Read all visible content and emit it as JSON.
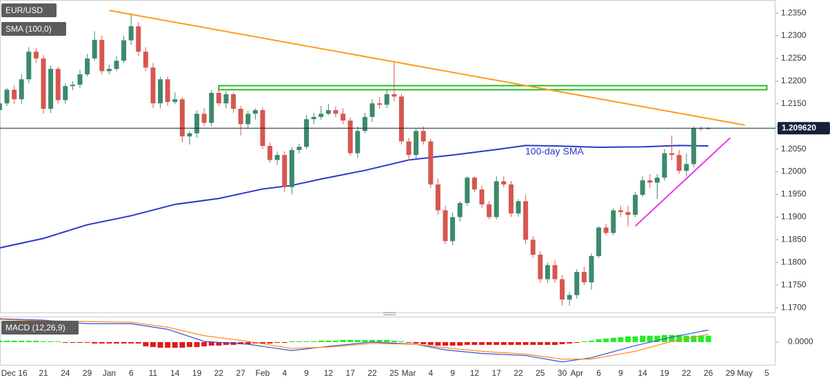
{
  "chart_data": [
    {
      "type": "candlestick",
      "title": "EUR/USD",
      "categories": [
        null,
        null,
        "Dec 16",
        null,
        null,
        null,
        "21",
        null,
        null,
        "24",
        null,
        null,
        "29",
        null,
        null,
        "Jan",
        null,
        null,
        "6",
        null,
        null,
        "11",
        null,
        null,
        "14",
        null,
        null,
        "19",
        null,
        null,
        "22",
        null,
        null,
        "27",
        null,
        null,
        "Feb",
        null,
        null,
        "4",
        null,
        null,
        "9",
        null,
        null,
        "12",
        null,
        null,
        "17",
        null,
        null,
        "22",
        null,
        null,
        "25",
        null,
        "Mar",
        null,
        null,
        "4",
        null,
        null,
        "9",
        null,
        null,
        "12",
        null,
        null,
        "17",
        null,
        null,
        "22",
        null,
        null,
        "25",
        null,
        null,
        "30",
        null,
        "Apr",
        null,
        null,
        "6",
        null,
        null,
        "9",
        null,
        null,
        "14",
        null,
        null,
        "19",
        null,
        null,
        "22",
        null,
        null,
        "26",
        null,
        null,
        "29",
        null,
        "May",
        null,
        null,
        "5"
      ],
      "open": [
        1.2136,
        1.2151,
        1.2181,
        1.216,
        1.2204,
        1.2265,
        1.225,
        1.2139,
        1.2227,
        1.2158,
        1.2189,
        1.2192,
        1.2215,
        1.225,
        1.2291,
        1.2222,
        1.2227,
        1.2245,
        1.229,
        1.2321,
        1.2265,
        1.223,
        1.2151,
        1.2204,
        1.2154,
        1.216,
        1.2078,
        1.2085,
        1.2128,
        1.2108,
        1.2174,
        1.2151,
        1.2171,
        1.2139,
        1.2105,
        1.2128,
        1.2136,
        1.2057,
        1.2026,
        1.2037,
        1.1966,
        1.2048,
        1.2055,
        1.2116,
        1.2121,
        1.2128,
        1.2136,
        1.2128,
        1.2113,
        1.2041,
        1.209,
        1.2121,
        1.2151,
        1.2148,
        1.2171,
        1.2166,
        1.2067,
        1.2037,
        1.209,
        1.2067,
        1.1972,
        1.1915,
        1.1847,
        1.19,
        1.1931,
        1.1987,
        1.1961,
        1.1928,
        1.19,
        1.1979,
        1.1972,
        1.1908,
        1.1935,
        1.185,
        1.1817,
        1.1763,
        1.1794,
        1.1763,
        1.1718,
        1.1728,
        1.1779,
        1.1756,
        1.1814,
        1.1877,
        1.1865,
        1.1915,
        1.1911,
        1.1905,
        1.1949,
        1.1981,
        1.1976,
        1.1987,
        1.2041,
        1.2037,
        1.2002,
        1.2017,
        1.2096,
        1.2095,
        null,
        null,
        null,
        null,
        null,
        null,
        null,
        null
      ],
      "high": [
        1.216,
        1.2185,
        1.219,
        1.2215,
        1.2275,
        1.2273,
        1.2258,
        1.2235,
        1.2232,
        1.2195,
        1.22,
        1.2225,
        1.226,
        1.231,
        1.23,
        1.2236,
        1.2255,
        1.23,
        1.235,
        1.233,
        1.2275,
        1.224,
        1.221,
        1.221,
        1.2175,
        1.2165,
        1.209,
        1.2135,
        1.214,
        1.218,
        1.2185,
        1.2178,
        1.2175,
        1.2145,
        1.2135,
        1.214,
        1.2142,
        1.2065,
        1.2045,
        1.2045,
        1.2055,
        1.2062,
        1.2125,
        1.213,
        1.2145,
        1.215,
        1.2145,
        1.214,
        1.212,
        1.21,
        1.213,
        1.216,
        1.2165,
        1.218,
        1.2243,
        1.2172,
        1.2075,
        1.2095,
        1.21,
        1.2073,
        1.1985,
        1.1925,
        1.191,
        1.1935,
        1.199,
        1.199,
        1.197,
        1.1935,
        1.199,
        1.199,
        1.198,
        1.194,
        1.195,
        1.1858,
        1.1825,
        1.18,
        1.1805,
        1.1772,
        1.1735,
        1.1785,
        1.179,
        1.182,
        1.188,
        1.1885,
        1.192,
        1.1925,
        1.1925,
        1.1955,
        1.199,
        1.1995,
        1.1995,
        1.205,
        1.208,
        1.2048,
        1.204,
        1.21,
        1.21,
        1.2099,
        null,
        null,
        null,
        null,
        null,
        null,
        null,
        null
      ],
      "low": [
        1.2125,
        1.2145,
        1.215,
        1.215,
        1.2195,
        1.224,
        1.2128,
        1.213,
        1.215,
        1.215,
        1.218,
        1.2185,
        1.221,
        1.2245,
        1.2215,
        1.2215,
        1.2222,
        1.224,
        1.228,
        1.2255,
        1.2222,
        1.214,
        1.214,
        1.2145,
        1.215,
        1.2065,
        1.206,
        1.2075,
        1.21,
        1.21,
        1.2145,
        1.214,
        1.213,
        1.208,
        1.2095,
        1.2115,
        1.205,
        1.202,
        1.2015,
        1.1955,
        1.195,
        1.204,
        1.205,
        1.2105,
        1.2115,
        1.2125,
        1.212,
        1.2105,
        1.2035,
        1.203,
        1.2085,
        1.211,
        1.214,
        1.214,
        1.2155,
        1.206,
        1.2025,
        1.203,
        1.206,
        1.1965,
        1.1905,
        1.184,
        1.1838,
        1.189,
        1.1925,
        1.1955,
        1.192,
        1.1895,
        1.1895,
        1.1965,
        1.19,
        1.19,
        1.184,
        1.181,
        1.1755,
        1.1755,
        1.1755,
        1.1705,
        1.1705,
        1.172,
        1.175,
        1.174,
        1.181,
        1.186,
        1.186,
        1.19,
        1.188,
        1.19,
        1.1945,
        1.1965,
        1.194,
        1.198,
        1.2025,
        1.1995,
        1.199,
        1.201,
        1.209,
        1.2093,
        null,
        null,
        null,
        null,
        null,
        null,
        null,
        null
      ],
      "close": [
        1.2151,
        1.2181,
        1.216,
        1.2204,
        1.2265,
        1.225,
        1.2139,
        1.2227,
        1.2158,
        1.2189,
        1.2192,
        1.2215,
        1.225,
        1.2291,
        1.2222,
        1.2227,
        1.2245,
        1.229,
        1.2321,
        1.2265,
        1.223,
        1.2151,
        1.2204,
        1.2154,
        1.216,
        1.2078,
        1.2085,
        1.2128,
        1.2108,
        1.2174,
        1.2151,
        1.2171,
        1.2139,
        1.2105,
        1.2128,
        1.2136,
        1.2057,
        1.2026,
        1.2037,
        1.1966,
        1.2048,
        1.2055,
        1.2116,
        1.2121,
        1.2128,
        1.2136,
        1.2128,
        1.2113,
        1.2041,
        1.209,
        1.2121,
        1.2151,
        1.2148,
        1.2171,
        1.2166,
        1.2067,
        1.2037,
        1.209,
        1.2067,
        1.1972,
        1.1915,
        1.1847,
        1.19,
        1.1931,
        1.1987,
        1.1961,
        1.1928,
        1.19,
        1.1979,
        1.1972,
        1.1908,
        1.1935,
        1.185,
        1.1817,
        1.1763,
        1.1794,
        1.1763,
        1.1718,
        1.1728,
        1.1779,
        1.1756,
        1.1814,
        1.1877,
        1.1865,
        1.1915,
        1.1911,
        1.1905,
        1.1949,
        1.1981,
        1.1976,
        1.1987,
        1.2041,
        1.2037,
        1.2002,
        1.2017,
        1.2096,
        1.2095,
        1.2096,
        null,
        null,
        null,
        null,
        null,
        null,
        null,
        null
      ],
      "up_color": "#3b8a6c",
      "down_color": "#d6574f",
      "ylim": [
        1.1688,
        1.2379
      ],
      "yticks": [
        {
          "value": 1.235,
          "label": "1.2350"
        },
        {
          "value": 1.23,
          "label": "1.2300"
        },
        {
          "value": 1.225,
          "label": "1.2250"
        },
        {
          "value": 1.22,
          "label": "1.2200"
        },
        {
          "value": 1.215,
          "label": "1.2150"
        },
        {
          "value": 1.21,
          "label": "1.2100"
        },
        {
          "value": 1.205,
          "label": "1.2050"
        },
        {
          "value": 1.2,
          "label": "1.2000"
        },
        {
          "value": 1.195,
          "label": "1.1950"
        },
        {
          "value": 1.19,
          "label": "1.1900"
        },
        {
          "value": 1.185,
          "label": "1.1850"
        },
        {
          "value": 1.18,
          "label": "1.1800"
        },
        {
          "value": 1.175,
          "label": "1.1750"
        },
        {
          "value": 1.17,
          "label": "1.1700"
        }
      ],
      "last_price": {
        "value": 1.20962,
        "label": "1.209620",
        "color": "#14213d"
      },
      "overlays": [
        {
          "name": "SMA (100,0)",
          "annotation": "100-day SMA",
          "color": "#2a36c9",
          "x": [
            0,
            6,
            12,
            18,
            24,
            30,
            36,
            40,
            44,
            50,
            56,
            62,
            68,
            72,
            76,
            82,
            88,
            93,
            97
          ],
          "values": [
            1.1832,
            1.1853,
            1.1883,
            1.1903,
            1.1928,
            1.1941,
            1.1962,
            1.197,
            1.1984,
            1.2003,
            1.2026,
            1.2037,
            1.2049,
            1.2058,
            1.2057,
            1.2054,
            1.2055,
            1.2058,
            1.2057
          ]
        }
      ],
      "trendlines": [
        {
          "color": "#ff9a1a",
          "x": [
            15,
            102
          ],
          "values": [
            1.2356,
            1.2103
          ]
        },
        {
          "color": "#e633e6",
          "x": [
            87,
            100
          ],
          "values": [
            1.188,
            1.2075
          ]
        }
      ],
      "zones": [
        {
          "color": "#22bb22",
          "x": [
            30,
            105
          ],
          "values": [
            1.2181,
            1.219
          ]
        }
      ]
    },
    {
      "type": "macd",
      "title": "MACD (12,26,9)",
      "histogram": [
        0.0002,
        0.0002,
        0.0002,
        0.0002,
        0.0002,
        0.0002,
        0.0001,
        0.0001,
        0.0001,
        -0.0001,
        -0.0001,
        -0.0001,
        -0.0001,
        -0.0002,
        -0.0002,
        -0.0002,
        -0.0002,
        -0.0002,
        -0.0002,
        -0.0002,
        -0.0006,
        -0.0007,
        -0.0008,
        -0.0008,
        -0.0008,
        -0.0008,
        -0.0007,
        -0.0007,
        -0.0006,
        -0.0005,
        -0.0005,
        -0.0004,
        -0.0004,
        -0.0003,
        -0.0003,
        -0.0002,
        -0.0002,
        -0.0002,
        -0.0001,
        -0.0001,
        0.0001,
        0.0001,
        0.0001,
        0.0001,
        0.0002,
        0.0002,
        0.0002,
        0.0003,
        0.0003,
        0.0003,
        0.0003,
        0.0003,
        0.0003,
        0.0003,
        0.0002,
        0.0001,
        -0.0001,
        -0.0002,
        -0.0003,
        -0.0004,
        -0.0005,
        -0.0005,
        -0.0005,
        -0.0005,
        -0.0004,
        -0.0004,
        -0.0004,
        -0.0004,
        -0.0004,
        -0.0004,
        -0.0004,
        -0.0004,
        -0.0004,
        -0.0004,
        -0.0004,
        -0.0004,
        -0.0004,
        -0.0003,
        -0.0002,
        -0.0001,
        0.0001,
        0.0002,
        0.0004,
        0.0005,
        0.0006,
        0.0007,
        0.0008,
        0.0008,
        0.0009,
        0.0009,
        0.0009,
        0.001,
        0.001,
        0.001,
        0.0009,
        0.0009,
        0.0009,
        0.0009,
        null,
        null,
        null,
        null,
        null,
        null,
        null,
        null
      ],
      "up_color": "#22ee22",
      "down_color": "#e31a1a",
      "series": [
        {
          "color": "#3050d8",
          "x": [
            0,
            6,
            12,
            18,
            23,
            28,
            34,
            40,
            45,
            51,
            57,
            61,
            66,
            72,
            77,
            81,
            87,
            92,
            97
          ],
          "values": [
            0.0033,
            0.0031,
            0.0026,
            0.0026,
            0.0018,
            0.0001,
            -0.0003,
            -0.0012,
            -0.0006,
            0.0,
            -0.0003,
            -0.0011,
            -0.0016,
            -0.0019,
            -0.0028,
            -0.0022,
            -0.0005,
            0.0007,
            0.0017
          ]
        },
        {
          "color": "#ff8c1a",
          "x": [
            0,
            6,
            12,
            18,
            23,
            28,
            34,
            40,
            45,
            51,
            57,
            61,
            66,
            72,
            77,
            81,
            87,
            92,
            97
          ],
          "values": [
            0.0032,
            0.003,
            0.0029,
            0.0028,
            0.0021,
            0.0009,
            0.0001,
            -0.0009,
            -0.0007,
            -0.0002,
            -0.0003,
            -0.0008,
            -0.0013,
            -0.0017,
            -0.0024,
            -0.0024,
            -0.0013,
            0.0001,
            0.0011
          ]
        }
      ],
      "ylim": [
        -0.0033,
        0.0034
      ],
      "yticks": [
        {
          "value": 0,
          "label": "0.0000"
        }
      ]
    }
  ]
}
